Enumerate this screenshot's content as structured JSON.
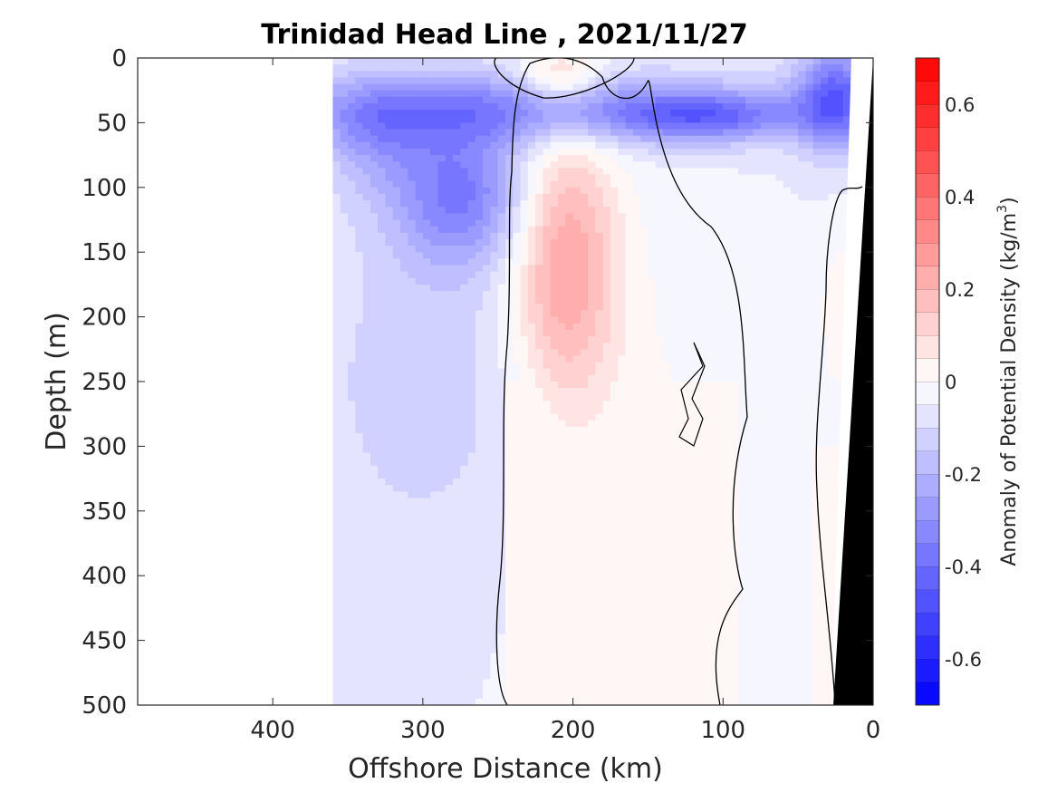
{
  "chart_data": {
    "type": "heatmap",
    "title": "Trinidad Head Line , 2021/11/27",
    "xlabel": "Offshore Distance (km)",
    "ylabel": "Depth (m)",
    "xlim": [
      490,
      0
    ],
    "ylim": [
      500,
      0
    ],
    "x_ticks": [
      "400",
      "300",
      "200",
      "100",
      "0"
    ],
    "y_ticks": [
      "0",
      "50",
      "100",
      "150",
      "200",
      "250",
      "300",
      "350",
      "400",
      "450",
      "500"
    ],
    "colorbar": {
      "label_main": "Anomaly of Potential Density (kg/m",
      "label_sup": "3",
      "label_close": ")",
      "range": [
        -0.7,
        0.7
      ],
      "levels": 28,
      "tick_values": [
        0.6,
        0.4,
        0.2,
        0,
        -0.2,
        -0.4,
        -0.6
      ],
      "tick_labels": [
        "0.6",
        "0.4",
        "0.2",
        "0",
        "-0.2",
        "-0.4",
        "-0.6"
      ],
      "color_min": "#0000ff",
      "color_mid": "#ffffff",
      "color_max": "#ff0000"
    },
    "data_extent_km": [
      360,
      10
    ],
    "features": [
      {
        "name": "shallow-dense-core-east",
        "x": [
          130,
          90
        ],
        "y": [
          40,
          55
        ],
        "anomaly": -0.5
      },
      {
        "name": "shallow-dense-core-nearshore",
        "x": [
          35,
          15
        ],
        "y": [
          0,
          50
        ],
        "anomaly": -0.6
      },
      {
        "name": "subsurface-dense-core",
        "x": [
          290,
          260
        ],
        "y": [
          90,
          130
        ],
        "anomaly": -0.45
      },
      {
        "name": "light-lens-surface",
        "x": [
          220,
          200
        ],
        "y": [
          0,
          25
        ],
        "anomaly": 0.1
      },
      {
        "name": "light-core-subsurface",
        "x": [
          220,
          200
        ],
        "y": [
          80,
          110
        ],
        "anomaly": 0.2
      }
    ]
  }
}
